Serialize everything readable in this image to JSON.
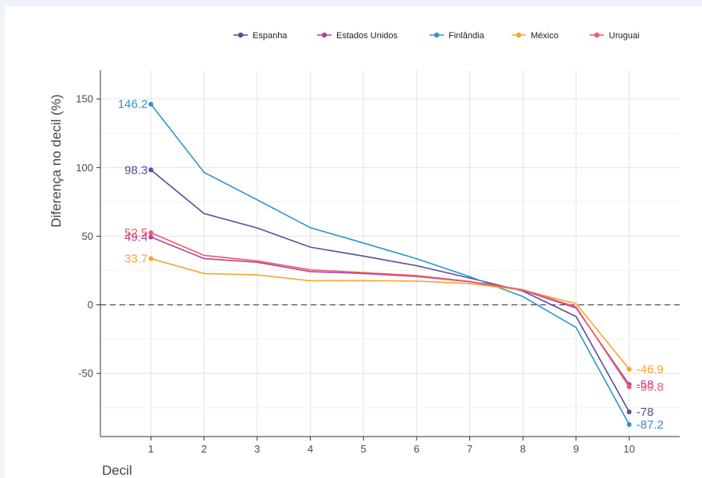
{
  "chart_data": {
    "type": "line",
    "xlabel": "Decil",
    "ylabel": "Diferença no decil (%)",
    "x": [
      1,
      2,
      3,
      4,
      5,
      6,
      7,
      8,
      9,
      10
    ],
    "xlim": [
      0.05,
      10.95
    ],
    "ylim": [
      -96,
      171
    ],
    "x_ticks": [
      1,
      2,
      3,
      4,
      5,
      6,
      7,
      8,
      9,
      10
    ],
    "y_ticks": [
      -50,
      0,
      50,
      100,
      150
    ],
    "grid": true,
    "reference_line": {
      "y": 0,
      "style": "dashed"
    },
    "legend_position": "top-right",
    "series": [
      {
        "name": "Espanha",
        "color": "#5b4c9a",
        "values": [
          98.3,
          66.5,
          56,
          42,
          35.5,
          28.5,
          19.5,
          10,
          -8.5,
          -78
        ],
        "start_label": "98.3",
        "end_label": "-78"
      },
      {
        "name": "Estados Unidos",
        "color": "#b2449a",
        "values": [
          49.4,
          33.7,
          31,
          24.2,
          22.8,
          20.7,
          16.8,
          10.6,
          -2.3,
          -58
        ],
        "start_label": "49.4",
        "end_label": "-58"
      },
      {
        "name": "Finlândia",
        "color": "#2e95c9",
        "values": [
          146.2,
          96.5,
          76.5,
          56.2,
          45,
          33.6,
          20.5,
          6,
          -16.5,
          -87.2
        ],
        "start_label": "146.2",
        "end_label": "-87.2"
      },
      {
        "name": "México",
        "color": "#f6a62a",
        "values": [
          33.7,
          22.8,
          21.8,
          17.5,
          17.6,
          17.3,
          15.5,
          10.7,
          0.9,
          -46.9
        ],
        "start_label": "33.7",
        "end_label": "-46.9"
      },
      {
        "name": "Uruguai",
        "color": "#ef5a6f",
        "values": [
          52.5,
          36,
          32,
          25.5,
          23.5,
          21.3,
          17,
          11,
          -1.5,
          -59.8
        ],
        "start_label": "52.5",
        "end_label": "-59.8"
      }
    ]
  }
}
